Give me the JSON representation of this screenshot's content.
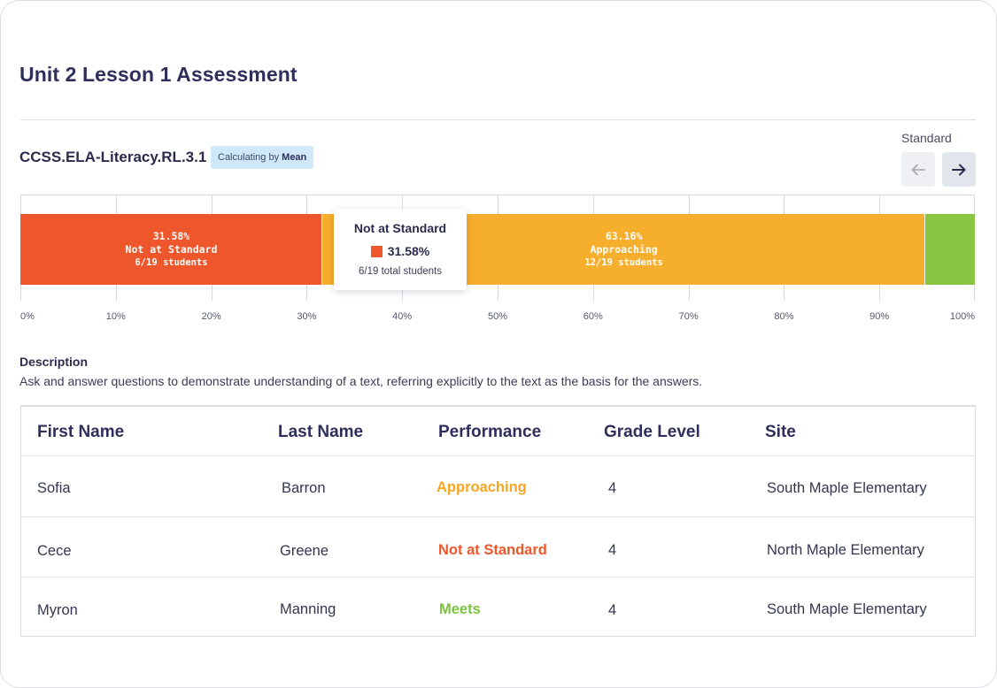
{
  "page": {
    "title": "Unit 2 Lesson 1 Assessment"
  },
  "standard": {
    "code": "CCSS.ELA-Literacy.RL.3.1",
    "calc_prefix": "Calculating by",
    "calc_method": "Mean",
    "nav_label": "Standard",
    "prev_icon": "arrow-left-icon",
    "next_icon": "arrow-right-icon"
  },
  "chart_data": {
    "type": "bar",
    "orientation": "horizontal-stacked",
    "xlim": [
      0,
      100
    ],
    "tick_labels": [
      "0%",
      "10%",
      "20%",
      "30%",
      "40%",
      "50%",
      "60%",
      "70%",
      "80%",
      "90%",
      "100%"
    ],
    "segments": [
      {
        "name": "Not at Standard",
        "percent": 31.58,
        "pct_label": "31.58%",
        "count_label": "6/19 students",
        "color": "#ee562b"
      },
      {
        "name": "Approaching",
        "percent": 63.16,
        "pct_label": "63.16%",
        "count_label": "12/19 students",
        "color": "#f6ae2d"
      },
      {
        "name": "Meets",
        "percent": 5.26,
        "color": "#88c540"
      }
    ],
    "tooltip": {
      "title": "Not at Standard",
      "value": "31.58%",
      "detail": "6/19 total students",
      "color": "#ee562b"
    }
  },
  "description": {
    "label": "Description",
    "text": "Ask and answer questions to demonstrate understanding of a text, referring explicitly to the text as the basis for the answers."
  },
  "table": {
    "headers": [
      "First Name",
      "Last Name",
      "Performance",
      "Grade Level",
      "Site"
    ],
    "rows": [
      {
        "first": "Sofia",
        "last": "Barron",
        "performance": "Approaching",
        "perf_color": "#f6a623",
        "grade": "4",
        "site": "South Maple Elementary"
      },
      {
        "first": "Cece",
        "last": "Greene",
        "performance": "Not at Standard",
        "perf_color": "#ee562b",
        "grade": "4",
        "site": "North Maple Elementary"
      },
      {
        "first": "Myron",
        "last": "Manning",
        "performance": "Meets",
        "perf_color": "#7cc23c",
        "grade": "4",
        "site": "South Maple Elementary"
      }
    ]
  }
}
